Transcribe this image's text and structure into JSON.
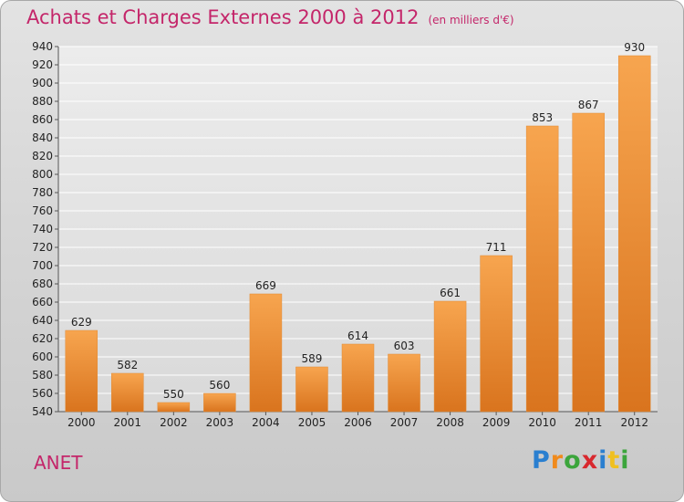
{
  "header": {
    "title": "Achats et Charges Externes 2000 à 2012",
    "subtitle": "(en milliers d'€)"
  },
  "footer": {
    "city": "ANET",
    "logo_text": "Proxiti"
  },
  "colors": {
    "title": "#c4266a",
    "bar_light": "#f7a54f",
    "bar_dark": "#d9741e"
  },
  "chart_data": {
    "type": "bar",
    "title": "Achats et Charges Externes 2000 à 2012",
    "subtitle": "(en milliers d'€)",
    "categories": [
      "2000",
      "2001",
      "2002",
      "2003",
      "2004",
      "2005",
      "2006",
      "2007",
      "2008",
      "2009",
      "2010",
      "2011",
      "2012"
    ],
    "values": [
      629,
      582,
      550,
      560,
      669,
      589,
      614,
      603,
      661,
      711,
      853,
      867,
      930
    ],
    "ylim": [
      540,
      940
    ],
    "yticks": [
      540,
      560,
      580,
      600,
      620,
      640,
      660,
      680,
      700,
      720,
      740,
      760,
      780,
      800,
      820,
      840,
      860,
      880,
      900,
      920,
      940
    ],
    "grid": true,
    "xlabel": "",
    "ylabel": ""
  }
}
